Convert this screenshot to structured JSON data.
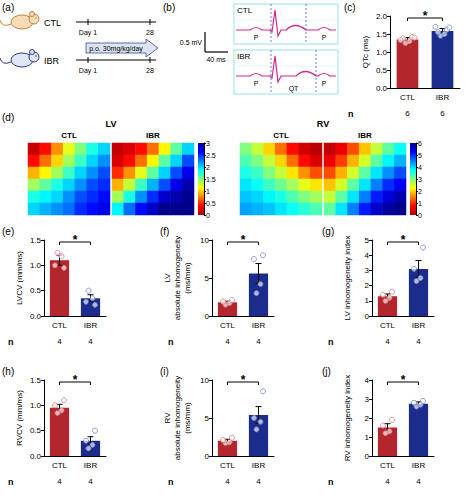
{
  "schematic": {
    "title": "(a)",
    "rows": [
      {
        "label": "CTL"
      },
      {
        "label": "IBR",
        "treatment": "p.o. 30mg/kg/day"
      }
    ],
    "timeline": [
      "Day 1",
      "28"
    ]
  },
  "ecg": {
    "title": "(b)",
    "traces": [
      {
        "label": "CTL",
        "wave_labels": [
          "P",
          "P"
        ]
      },
      {
        "label": "IBR",
        "wave_labels": [
          "P",
          "P"
        ],
        "interval_label": "QT"
      }
    ],
    "scale_bar": {
      "voltage": "0.5 mV",
      "time": "40 ms"
    }
  },
  "chart_data": [
    {
      "type": "bar",
      "title": "(c)",
      "ylabel": "QTc (ms)",
      "categories": [
        "CTL",
        "IBR"
      ],
      "values": [
        1.35,
        1.58
      ],
      "errors": [
        0.05,
        0.07
      ],
      "points": [
        [
          1.25,
          1.3,
          1.38,
          1.42,
          1.33,
          1.4
        ],
        [
          1.45,
          1.5,
          1.55,
          1.62,
          1.7,
          1.68
        ]
      ],
      "colors": [
        "#b3262e",
        "#1c2c8c"
      ],
      "ylim": [
        0,
        2
      ],
      "yticks": [
        {
          "value": 0,
          "label": "0.0"
        },
        0.5,
        {
          "value": 1,
          "label": "1.0"
        },
        1.5,
        {
          "value": 2,
          "label": "2.0"
        }
      ],
      "n_label": "n",
      "n": [
        6,
        6
      ],
      "annotations": [
        "*"
      ]
    },
    {
      "type": "heatmap",
      "title": "(d)",
      "groups": [
        {
          "label": "LV",
          "clim": [
            0,
            3
          ],
          "cticks": [
            0,
            0.5,
            1,
            1.5,
            2,
            2.5,
            3
          ],
          "maps": [
            {
              "label": "CTL",
              "cells": [
                [
                  0.1,
                  0.4,
                  0.8,
                  1.2,
                  1.5,
                  1.8,
                  2.0
                ],
                [
                  0.4,
                  0.7,
                  1.0,
                  1.4,
                  1.7,
                  2.0,
                  2.2
                ],
                [
                  0.9,
                  1.1,
                  1.4,
                  1.7,
                  2.0,
                  2.2,
                  2.4
                ],
                [
                  1.4,
                  1.6,
                  1.8,
                  2.0,
                  2.2,
                  2.4,
                  2.5
                ],
                [
                  1.8,
                  1.9,
                  2.0,
                  2.2,
                  2.4,
                  2.5,
                  2.6
                ],
                [
                  2.0,
                  2.1,
                  2.2,
                  2.3,
                  2.5,
                  2.6,
                  2.7
                ]
              ]
            },
            {
              "label": "IBR",
              "cells": [
                [
                  0.1,
                  0.2,
                  0.4,
                  0.7,
                  1.1,
                  1.6,
                  2.0
                ],
                [
                  0.2,
                  0.4,
                  0.7,
                  1.1,
                  1.6,
                  2.0,
                  2.4
                ],
                [
                  0.5,
                  0.8,
                  1.2,
                  1.6,
                  2.0,
                  2.4,
                  2.7
                ],
                [
                  0.9,
                  1.3,
                  1.7,
                  2.1,
                  2.4,
                  2.7,
                  2.9
                ],
                [
                  1.4,
                  1.8,
                  2.2,
                  2.5,
                  2.8,
                  2.9,
                  3.0
                ],
                [
                  1.9,
                  2.3,
                  2.6,
                  2.8,
                  3.0,
                  3.0,
                  3.0
                ]
              ]
            }
          ]
        },
        {
          "label": "RV",
          "clim": [
            0,
            6
          ],
          "cticks": [
            0,
            1,
            2,
            3,
            4,
            5,
            6
          ],
          "maps": [
            {
              "label": "CTL",
              "cells": [
                [
                  3.0,
                  2.6,
                  2.0,
                  1.4,
                  0.8,
                  0.3,
                  0.1
                ],
                [
                  3.3,
                  3.0,
                  2.6,
                  2.0,
                  1.4,
                  0.8,
                  0.4
                ],
                [
                  3.6,
                  3.4,
                  3.0,
                  2.6,
                  2.1,
                  1.6,
                  1.2
                ],
                [
                  3.9,
                  3.7,
                  3.4,
                  3.1,
                  2.8,
                  2.4,
                  2.1
                ],
                [
                  4.1,
                  4.0,
                  3.8,
                  3.6,
                  3.3,
                  3.0,
                  2.8
                ],
                [
                  4.3,
                  4.2,
                  4.1,
                  3.9,
                  3.7,
                  3.5,
                  3.3
                ]
              ]
            },
            {
              "label": "IBR",
              "cells": [
                [
                  0.2,
                  0.6,
                  1.2,
                  1.9,
                  2.6,
                  3.2,
                  3.7
                ],
                [
                  0.6,
                  1.1,
                  1.8,
                  2.5,
                  3.2,
                  3.8,
                  4.2
                ],
                [
                  1.2,
                  1.8,
                  2.5,
                  3.2,
                  3.9,
                  4.4,
                  4.8
                ],
                [
                  1.9,
                  2.5,
                  3.2,
                  3.9,
                  4.5,
                  5.0,
                  5.3
                ],
                [
                  2.6,
                  3.2,
                  3.9,
                  4.5,
                  5.1,
                  5.5,
                  5.8
                ],
                [
                  3.2,
                  3.9,
                  4.5,
                  5.1,
                  5.6,
                  5.9,
                  6.0
                ]
              ]
            }
          ]
        }
      ]
    },
    {
      "type": "bar",
      "title": "(e)",
      "ylabel": "LVCV (mm/ms)",
      "categories": [
        "CTL",
        "IBR"
      ],
      "values": [
        1.1,
        0.35
      ],
      "errors": [
        0.1,
        0.07
      ],
      "points": [
        [
          1.25,
          1.18,
          1.0,
          0.95
        ],
        [
          0.5,
          0.35,
          0.28,
          0.22
        ]
      ],
      "colors": [
        "#b3262e",
        "#1c2c8c"
      ],
      "ylim": [
        0,
        1.5
      ],
      "yticks": [
        {
          "value": 0,
          "label": "0.0"
        },
        0.5,
        {
          "value": 1,
          "label": "1.0"
        },
        1.5
      ],
      "n_label": "n",
      "n": [
        4,
        4
      ],
      "annotations": [
        "*"
      ]
    },
    {
      "type": "bar",
      "title": "(f)",
      "ylabel": "LV\nabsolute inhomogeneity\n(ms/mm)",
      "categories": [
        "CTL",
        "IBR"
      ],
      "values": [
        1.8,
        5.6
      ],
      "errors": [
        0.15,
        1.3
      ],
      "points": [
        [
          1.5,
          1.7,
          1.9,
          2.1
        ],
        [
          3.0,
          4.2,
          7.5,
          8.0
        ]
      ],
      "colors": [
        "#b3262e",
        "#1c2c8c"
      ],
      "ylim": [
        0,
        10
      ],
      "yticks": [
        0,
        5,
        10
      ],
      "n_label": "n",
      "n": [
        4,
        4
      ],
      "annotations": [
        "*"
      ]
    },
    {
      "type": "bar",
      "title": "(g)",
      "ylabel": "LV inhomogeneity index",
      "categories": [
        "CTL",
        "IBR"
      ],
      "values": [
        1.3,
        3.1
      ],
      "errors": [
        0.15,
        0.55
      ],
      "points": [
        [
          1.0,
          1.2,
          1.4,
          1.6
        ],
        [
          2.3,
          2.5,
          3.1,
          4.5
        ]
      ],
      "colors": [
        "#b3262e",
        "#1c2c8c"
      ],
      "ylim": [
        0,
        5
      ],
      "yticks": [
        0,
        1,
        2,
        3,
        4,
        5
      ],
      "n_label": "n",
      "n": [
        4,
        4
      ],
      "annotations": [
        "*"
      ]
    },
    {
      "type": "bar",
      "title": "(h)",
      "ylabel": "RVCV (mm/ms)",
      "categories": [
        "CTL",
        "IBR"
      ],
      "values": [
        0.95,
        0.3
      ],
      "errors": [
        0.07,
        0.08
      ],
      "points": [
        [
          0.85,
          0.9,
          1.0,
          1.1
        ],
        [
          0.15,
          0.22,
          0.3,
          0.5
        ]
      ],
      "colors": [
        "#b3262e",
        "#1c2c8c"
      ],
      "ylim": [
        0,
        1.5
      ],
      "yticks": [
        {
          "value": 0,
          "label": "0.0"
        },
        0.5,
        {
          "value": 1,
          "label": "1.0"
        },
        1.5
      ],
      "n_label": "n",
      "n": [
        4,
        4
      ],
      "annotations": [
        "*"
      ]
    },
    {
      "type": "bar",
      "title": "(i)",
      "ylabel": "RV\nabsolute inhomogeneity\n(ms/mm)",
      "categories": [
        "CTL",
        "IBR"
      ],
      "values": [
        2.0,
        5.4
      ],
      "errors": [
        0.2,
        1.1
      ],
      "points": [
        [
          1.7,
          1.8,
          2.1,
          2.4
        ],
        [
          3.5,
          4.5,
          5.0,
          8.5
        ]
      ],
      "colors": [
        "#b3262e",
        "#1c2c8c"
      ],
      "ylim": [
        0,
        10
      ],
      "yticks": [
        0,
        5,
        10
      ],
      "n_label": "n",
      "n": [
        4,
        4
      ],
      "annotations": [
        "*"
      ]
    },
    {
      "type": "bar",
      "title": "(j)",
      "ylabel": "RV inhomogeneity index",
      "categories": [
        "CTL",
        "IBR"
      ],
      "values": [
        1.5,
        2.75
      ],
      "errors": [
        0.2,
        0.1
      ],
      "points": [
        [
          1.2,
          1.3,
          1.6,
          1.9
        ],
        [
          2.6,
          2.7,
          2.8,
          2.9
        ]
      ],
      "colors": [
        "#b3262e",
        "#1c2c8c"
      ],
      "ylim": [
        0,
        4
      ],
      "yticks": [
        0,
        1,
        2,
        3,
        4
      ],
      "n_label": "n",
      "n": [
        4,
        4
      ],
      "annotations": [
        "*"
      ]
    }
  ]
}
